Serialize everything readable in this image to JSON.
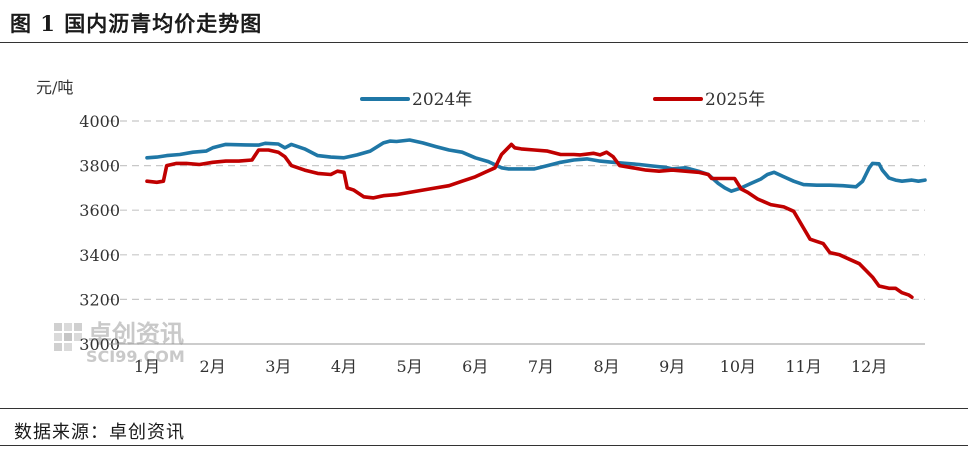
{
  "title": "图 1 国内沥青均价走势图",
  "source": "数据来源：卓创资讯",
  "watermark": {
    "brand": "卓创资讯",
    "site": "SCI99.COM"
  },
  "colors": {
    "s2024": "#1f77a6",
    "s2025": "#c00000",
    "grid": "#c8c8c8"
  },
  "chart_data": {
    "type": "line",
    "title": "国内沥青均价走势图",
    "ylabel": "元/吨",
    "xlabel": "",
    "ylim": [
      3000,
      4000
    ],
    "yticks": [
      "4000",
      "3800",
      "3600",
      "3400",
      "3200",
      "3000"
    ],
    "yticks_values": [
      4000,
      3800,
      3600,
      3400,
      3200,
      3000
    ],
    "x_range": [
      1,
      12.85
    ],
    "months": [
      {
        "label": "1月",
        "x": 1
      },
      {
        "label": "2月",
        "x": 2
      },
      {
        "label": "3月",
        "x": 3
      },
      {
        "label": "4月",
        "x": 4
      },
      {
        "label": "5月",
        "x": 5
      },
      {
        "label": "6月",
        "x": 6
      },
      {
        "label": "7月",
        "x": 7
      },
      {
        "label": "8月",
        "x": 8
      },
      {
        "label": "9月",
        "x": 9
      },
      {
        "label": "10月",
        "x": 10
      },
      {
        "label": "11月",
        "x": 11
      },
      {
        "label": "12月",
        "x": 12
      }
    ],
    "series": [
      {
        "name": "2024年",
        "color": "#1f77a6",
        "points": [
          [
            1.0,
            3835
          ],
          [
            1.15,
            3838
          ],
          [
            1.3,
            3845
          ],
          [
            1.5,
            3850
          ],
          [
            1.7,
            3860
          ],
          [
            1.9,
            3865
          ],
          [
            2.0,
            3880
          ],
          [
            2.2,
            3895
          ],
          [
            2.5,
            3893
          ],
          [
            2.7,
            3892
          ],
          [
            2.8,
            3900
          ],
          [
            3.0,
            3897
          ],
          [
            3.1,
            3880
          ],
          [
            3.2,
            3895
          ],
          [
            3.4,
            3875
          ],
          [
            3.6,
            3845
          ],
          [
            3.8,
            3838
          ],
          [
            4.0,
            3835
          ],
          [
            4.2,
            3848
          ],
          [
            4.4,
            3865
          ],
          [
            4.6,
            3902
          ],
          [
            4.7,
            3910
          ],
          [
            4.8,
            3908
          ],
          [
            5.0,
            3915
          ],
          [
            5.2,
            3902
          ],
          [
            5.4,
            3885
          ],
          [
            5.6,
            3870
          ],
          [
            5.8,
            3860
          ],
          [
            6.0,
            3835
          ],
          [
            6.2,
            3818
          ],
          [
            6.4,
            3790
          ],
          [
            6.5,
            3785
          ],
          [
            6.7,
            3785
          ],
          [
            6.9,
            3785
          ],
          [
            7.1,
            3800
          ],
          [
            7.3,
            3815
          ],
          [
            7.5,
            3825
          ],
          [
            7.7,
            3830
          ],
          [
            7.9,
            3820
          ],
          [
            8.1,
            3815
          ],
          [
            8.3,
            3810
          ],
          [
            8.5,
            3805
          ],
          [
            8.7,
            3798
          ],
          [
            8.9,
            3792
          ],
          [
            9.0,
            3785
          ],
          [
            9.2,
            3790
          ],
          [
            9.4,
            3775
          ],
          [
            9.55,
            3760
          ],
          [
            9.7,
            3720
          ],
          [
            9.8,
            3700
          ],
          [
            9.9,
            3685
          ],
          [
            10.05,
            3700
          ],
          [
            10.2,
            3720
          ],
          [
            10.35,
            3740
          ],
          [
            10.45,
            3760
          ],
          [
            10.55,
            3770
          ],
          [
            10.7,
            3750
          ],
          [
            10.85,
            3730
          ],
          [
            11.0,
            3715
          ],
          [
            11.2,
            3712
          ],
          [
            11.4,
            3712
          ],
          [
            11.6,
            3710
          ],
          [
            11.8,
            3705
          ],
          [
            11.9,
            3730
          ],
          [
            11.95,
            3760
          ],
          [
            12.0,
            3790
          ],
          [
            12.05,
            3810
          ],
          [
            12.15,
            3808
          ],
          [
            12.2,
            3780
          ],
          [
            12.3,
            3745
          ],
          [
            12.4,
            3735
          ],
          [
            12.5,
            3730
          ],
          [
            12.65,
            3735
          ],
          [
            12.75,
            3730
          ],
          [
            12.85,
            3735
          ]
        ]
      },
      {
        "name": "2025年",
        "color": "#c00000",
        "points": [
          [
            1.0,
            3730
          ],
          [
            1.15,
            3725
          ],
          [
            1.25,
            3730
          ],
          [
            1.3,
            3800
          ],
          [
            1.45,
            3810
          ],
          [
            1.6,
            3810
          ],
          [
            1.8,
            3805
          ],
          [
            2.0,
            3815
          ],
          [
            2.2,
            3820
          ],
          [
            2.4,
            3820
          ],
          [
            2.6,
            3825
          ],
          [
            2.7,
            3870
          ],
          [
            2.85,
            3870
          ],
          [
            3.0,
            3860
          ],
          [
            3.1,
            3840
          ],
          [
            3.2,
            3800
          ],
          [
            3.4,
            3780
          ],
          [
            3.6,
            3765
          ],
          [
            3.8,
            3760
          ],
          [
            3.9,
            3775
          ],
          [
            4.0,
            3770
          ],
          [
            4.05,
            3700
          ],
          [
            4.15,
            3690
          ],
          [
            4.3,
            3660
          ],
          [
            4.45,
            3655
          ],
          [
            4.6,
            3665
          ],
          [
            4.8,
            3670
          ],
          [
            5.0,
            3680
          ],
          [
            5.2,
            3690
          ],
          [
            5.4,
            3700
          ],
          [
            5.6,
            3710
          ],
          [
            5.8,
            3730
          ],
          [
            6.0,
            3750
          ],
          [
            6.15,
            3770
          ],
          [
            6.3,
            3790
          ],
          [
            6.4,
            3850
          ],
          [
            6.5,
            3880
          ],
          [
            6.55,
            3895
          ],
          [
            6.6,
            3880
          ],
          [
            6.7,
            3875
          ],
          [
            6.9,
            3870
          ],
          [
            7.1,
            3865
          ],
          [
            7.3,
            3850
          ],
          [
            7.5,
            3850
          ],
          [
            7.6,
            3848
          ],
          [
            7.8,
            3855
          ],
          [
            7.9,
            3848
          ],
          [
            8.0,
            3860
          ],
          [
            8.1,
            3840
          ],
          [
            8.2,
            3800
          ],
          [
            8.4,
            3790
          ],
          [
            8.6,
            3780
          ],
          [
            8.8,
            3775
          ],
          [
            9.0,
            3780
          ],
          [
            9.2,
            3775
          ],
          [
            9.4,
            3770
          ],
          [
            9.55,
            3760
          ],
          [
            9.6,
            3742
          ],
          [
            9.8,
            3742
          ],
          [
            9.95,
            3742
          ],
          [
            10.05,
            3695
          ],
          [
            10.15,
            3680
          ],
          [
            10.3,
            3650
          ],
          [
            10.5,
            3625
          ],
          [
            10.7,
            3615
          ],
          [
            10.85,
            3595
          ],
          [
            11.0,
            3520
          ],
          [
            11.1,
            3470
          ],
          [
            11.2,
            3460
          ],
          [
            11.3,
            3450
          ],
          [
            11.4,
            3410
          ],
          [
            11.55,
            3400
          ],
          [
            11.7,
            3380
          ],
          [
            11.85,
            3360
          ],
          [
            11.95,
            3330
          ],
          [
            12.05,
            3300
          ],
          [
            12.15,
            3260
          ],
          [
            12.3,
            3250
          ],
          [
            12.4,
            3250
          ],
          [
            12.5,
            3230
          ],
          [
            12.6,
            3220
          ],
          [
            12.65,
            3210
          ]
        ]
      }
    ],
    "legend": [
      "2024年",
      "2025年"
    ],
    "legend_position": "top-center",
    "grid": true
  }
}
